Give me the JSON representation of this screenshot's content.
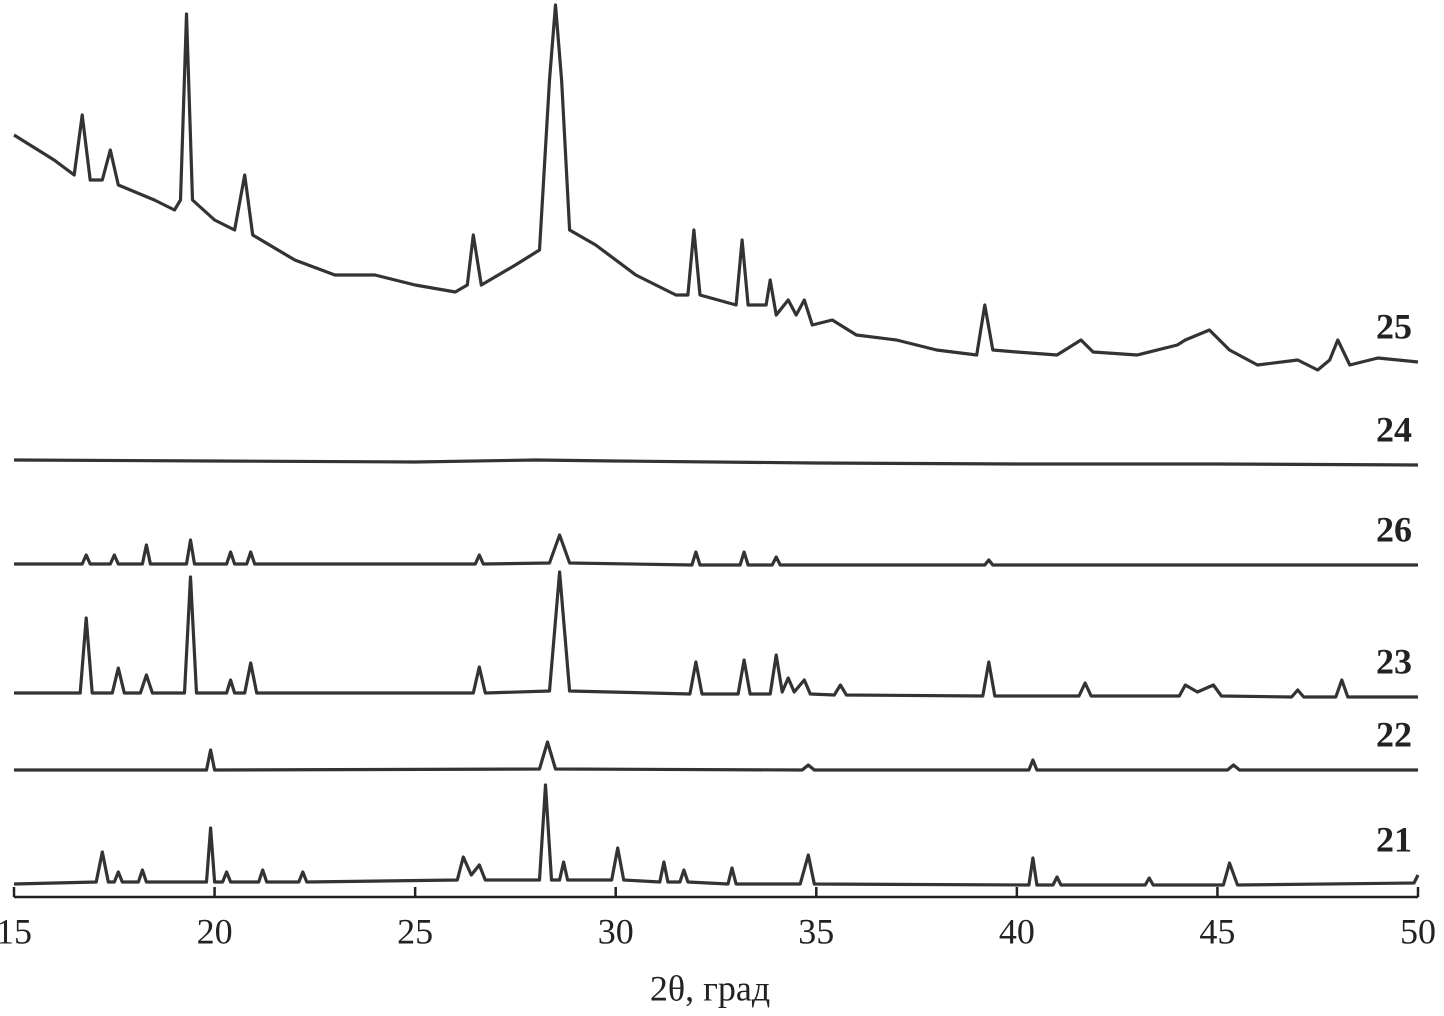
{
  "chart_data": {
    "type": "line",
    "xlabel": "2θ, град",
    "xlim": [
      15,
      50
    ],
    "xticks": [
      15,
      20,
      25,
      30,
      35,
      40,
      45,
      50
    ],
    "ylim": [
      0,
      900
    ],
    "series": [
      {
        "name": "25",
        "color": "#333333",
        "x": [
          15,
          16,
          16.5,
          16.7,
          16.9,
          17.2,
          17.4,
          17.6,
          18.5,
          19.0,
          19.15,
          19.3,
          19.45,
          20.0,
          20.5,
          20.75,
          20.95,
          22,
          23,
          24,
          25,
          26.0,
          26.3,
          26.45,
          26.65,
          27.5,
          28.1,
          28.35,
          28.5,
          28.65,
          28.85,
          29.5,
          30.5,
          31.5,
          31.8,
          31.95,
          32.1,
          33.0,
          33.15,
          33.3,
          33.75,
          33.85,
          34.0,
          34.3,
          34.5,
          34.7,
          34.9,
          35.4,
          36,
          37,
          38,
          39.0,
          39.2,
          39.4,
          40,
          41,
          41.6,
          41.9,
          43,
          44.0,
          44.2,
          44.8,
          45.3,
          46,
          47,
          47.5,
          47.8,
          48.0,
          48.3,
          49,
          50
        ],
        "values": [
          762,
          737,
          722,
          782,
          717,
          717,
          747,
          712,
          697,
          687,
          697,
          883,
          697,
          677,
          667,
          722,
          662,
          637,
          622,
          622,
          612,
          605,
          612,
          662,
          612,
          632,
          647,
          817,
          892,
          817,
          667,
          652,
          622,
          602,
          602,
          667,
          602,
          592,
          657,
          592,
          592,
          617,
          582,
          597,
          582,
          597,
          572,
          577,
          562,
          557,
          547,
          542,
          592,
          547,
          545,
          542,
          557,
          545,
          542,
          552,
          557,
          567,
          547,
          532,
          537,
          527,
          537,
          557,
          532,
          539,
          535
        ]
      },
      {
        "name": "24",
        "color": "#333333",
        "x": [
          15,
          20,
          25,
          28,
          30,
          35,
          40,
          45,
          50
        ],
        "values": [
          437,
          436,
          435,
          437,
          436,
          434,
          433,
          433,
          432
        ]
      },
      {
        "name": "26",
        "color": "#333333",
        "x": [
          15,
          16.7,
          16.8,
          16.9,
          17.4,
          17.5,
          17.6,
          18.2,
          18.3,
          18.4,
          19.3,
          19.4,
          19.5,
          20.3,
          20.4,
          20.5,
          20.8,
          20.9,
          21.0,
          26.5,
          26.6,
          26.7,
          28.35,
          28.6,
          28.85,
          31.9,
          32,
          32.1,
          33.1,
          33.2,
          33.3,
          33.9,
          34,
          34.1,
          39.2,
          39.3,
          39.4,
          50
        ],
        "values": [
          333,
          333,
          342,
          333,
          333,
          342,
          333,
          333,
          352,
          333,
          333,
          357,
          333,
          333,
          345,
          333,
          333,
          345,
          333,
          333,
          342,
          333,
          334,
          362,
          334,
          332,
          345,
          332,
          332,
          345,
          332,
          332,
          340,
          332,
          332,
          337,
          332,
          332
        ]
      },
      {
        "name": "23",
        "color": "#333333",
        "x": [
          15,
          16.65,
          16.8,
          16.95,
          17.45,
          17.6,
          17.75,
          18.15,
          18.3,
          18.45,
          19.25,
          19.4,
          19.55,
          20.3,
          20.4,
          20.5,
          20.75,
          20.9,
          21.05,
          26.45,
          26.6,
          26.75,
          28.35,
          28.6,
          28.85,
          31.85,
          32,
          32.15,
          33.05,
          33.2,
          33.35,
          33.85,
          34,
          34.15,
          34.3,
          34.45,
          34.7,
          34.85,
          35.45,
          35.6,
          35.75,
          39.15,
          39.3,
          39.45,
          41.55,
          41.7,
          41.85,
          44.05,
          44.2,
          44.5,
          44.9,
          45.1,
          46.85,
          47,
          47.15,
          47.95,
          48.1,
          48.25,
          50
        ],
        "values": [
          204,
          204,
          279,
          204,
          204,
          229,
          204,
          204,
          222,
          204,
          204,
          320,
          204,
          204,
          217,
          204,
          204,
          234,
          204,
          204,
          230,
          204,
          206,
          325,
          206,
          203,
          235,
          203,
          203,
          237,
          203,
          203,
          242,
          205,
          219,
          205,
          217,
          203,
          202,
          212,
          202,
          201,
          235,
          201,
          201,
          214,
          201,
          201,
          212,
          205,
          212,
          201,
          200,
          207,
          200,
          200,
          217,
          200,
          200
        ]
      },
      {
        "name": "22",
        "color": "#333333",
        "x": [
          15,
          19.8,
          19.9,
          20.0,
          28.1,
          28.3,
          28.5,
          34.65,
          34.8,
          34.95,
          40.3,
          40.4,
          40.5,
          45.25,
          45.4,
          45.55,
          50
        ],
        "values": [
          127,
          127,
          147,
          127,
          128,
          155,
          128,
          127,
          132,
          127,
          127,
          137,
          127,
          127,
          132,
          127,
          127
        ]
      },
      {
        "name": "21",
        "color": "#333333",
        "x": [
          15,
          17.05,
          17.2,
          17.35,
          17.5,
          17.6,
          17.7,
          18.1,
          18.2,
          18.3,
          19.8,
          19.9,
          20.0,
          20.2,
          20.3,
          20.4,
          21.1,
          21.2,
          21.3,
          22.1,
          22.2,
          22.3,
          26.05,
          26.2,
          26.4,
          26.6,
          26.75,
          28.1,
          28.25,
          28.4,
          28.6,
          28.7,
          28.8,
          29.9,
          30.05,
          30.2,
          31.1,
          31.2,
          31.3,
          31.6,
          31.7,
          31.8,
          32.8,
          32.9,
          33.0,
          34.6,
          34.8,
          34.95,
          40.3,
          40.4,
          40.5,
          40.9,
          41.0,
          41.1,
          43.2,
          43.3,
          43.4,
          45.15,
          45.3,
          45.5,
          49.9,
          50
        ],
        "values": [
          13,
          15,
          45,
          15,
          15,
          25,
          15,
          15,
          27,
          15,
          15,
          69,
          15,
          15,
          25,
          15,
          15,
          27,
          15,
          15,
          25,
          15,
          17,
          40,
          22,
          32,
          17,
          17,
          112,
          17,
          17,
          35,
          17,
          17,
          49,
          17,
          15,
          35,
          15,
          15,
          27,
          15,
          13,
          29,
          13,
          13,
          42,
          13,
          12,
          39,
          12,
          12,
          20,
          12,
          12,
          19,
          12,
          12,
          34,
          12,
          14,
          22
        ]
      }
    ]
  }
}
